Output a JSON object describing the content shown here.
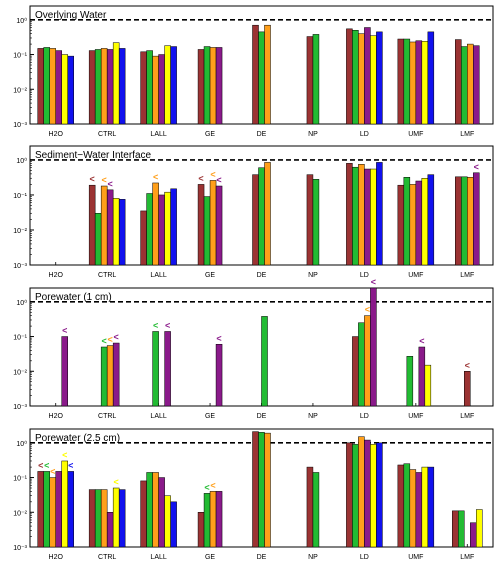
{
  "colors": {
    "series": [
      "#9b3333",
      "#22bb33",
      "#ff9f1a",
      "#8a1a8a",
      "#ffff00",
      "#1111ee"
    ],
    "frame": "#000000",
    "reference_line": "#000000"
  },
  "chart_data": [
    {
      "type": "bar",
      "title": "Overlying Water",
      "y_scale": "log",
      "ylim": [
        0.001,
        2.5
      ],
      "y_ticks": [
        "10⁻³",
        "10⁻²",
        "10⁻¹",
        "10⁰"
      ],
      "reference_line": 1,
      "categories": [
        "H2O",
        "CTRL",
        "LALL",
        "GE",
        "DE",
        "NP",
        "LD",
        "UMF",
        "LMF"
      ],
      "bars": [
        [
          0.15,
          0.16,
          0.15,
          0.13,
          0.1,
          0.09
        ],
        [
          0.13,
          0.14,
          0.15,
          0.14,
          0.22,
          0.15
        ],
        [
          0.12,
          0.13,
          0.09,
          0.1,
          0.18,
          0.17
        ],
        [
          0.14,
          0.17,
          0.16,
          0.16,
          null,
          null
        ],
        [
          0.7,
          0.45,
          0.7,
          null,
          null,
          null
        ],
        [
          0.33,
          0.38,
          null,
          null,
          null,
          null
        ],
        [
          0.55,
          0.5,
          0.4,
          0.6,
          0.35,
          0.45
        ],
        [
          0.28,
          0.28,
          0.23,
          0.25,
          0.24,
          0.45
        ],
        [
          0.27,
          0.17,
          0.2,
          0.18,
          null,
          null
        ]
      ],
      "markers": []
    },
    {
      "type": "bar",
      "title": "Sediment−Water Interface",
      "y_scale": "log",
      "ylim": [
        0.001,
        2.5
      ],
      "y_ticks": [
        "10⁻³",
        "10⁻²",
        "10⁻¹",
        "10⁰"
      ],
      "reference_line": 1,
      "categories": [
        "H2O",
        "CTRL",
        "LALL",
        "GE",
        "DE",
        "NP",
        "LD",
        "UMF",
        "LMF"
      ],
      "bars": [
        [
          null,
          null,
          null,
          null,
          null,
          null
        ],
        [
          0.19,
          0.03,
          0.18,
          0.14,
          0.08,
          0.075
        ],
        [
          0.035,
          0.11,
          0.22,
          0.1,
          0.12,
          0.15
        ],
        [
          0.2,
          0.09,
          0.26,
          0.18,
          null,
          null
        ],
        [
          0.38,
          0.6,
          0.85,
          null,
          null,
          null
        ],
        [
          0.38,
          0.28,
          null,
          null,
          null,
          null
        ],
        [
          0.8,
          0.62,
          0.75,
          0.55,
          0.55,
          0.85
        ],
        [
          0.19,
          0.32,
          0.2,
          0.25,
          0.3,
          0.38
        ],
        [
          0.33,
          0.33,
          0.32,
          0.43,
          null,
          null
        ]
      ],
      "markers": [
        {
          "category": 1,
          "bar": 0,
          "text": "<"
        },
        {
          "category": 1,
          "bar": 2,
          "text": "<"
        },
        {
          "category": 1,
          "bar": 3,
          "text": "<"
        },
        {
          "category": 2,
          "bar": 2,
          "text": "<"
        },
        {
          "category": 3,
          "bar": 0,
          "text": "<"
        },
        {
          "category": 3,
          "bar": 2,
          "text": "<"
        },
        {
          "category": 3,
          "bar": 3,
          "text": "<"
        },
        {
          "category": 8,
          "bar": 3,
          "text": "<"
        }
      ]
    },
    {
      "type": "bar",
      "title": "Porewater (1 cm)",
      "y_scale": "log",
      "ylim": [
        0.001,
        2.5
      ],
      "y_ticks": [
        "10⁻³",
        "10⁻²",
        "10⁻¹",
        "10⁰"
      ],
      "reference_line": 1,
      "categories": [
        "H2O",
        "CTRL",
        "LALL",
        "GE",
        "DE",
        "NP",
        "LD",
        "UMF",
        "LMF"
      ],
      "bars": [
        [
          null,
          null,
          null,
          0.1,
          null,
          null
        ],
        [
          null,
          0.05,
          0.055,
          0.065,
          null,
          null
        ],
        [
          null,
          0.14,
          null,
          0.14,
          null,
          null
        ],
        [
          null,
          null,
          null,
          0.06,
          null,
          null
        ],
        [
          null,
          0.38,
          null,
          null,
          null,
          null
        ],
        [
          null,
          null,
          null,
          null,
          null,
          null
        ],
        [
          0.1,
          0.25,
          0.4,
          2.5,
          null,
          null
        ],
        [
          null,
          0.027,
          null,
          0.05,
          0.015,
          null
        ],
        [
          0.01,
          null,
          null,
          null,
          null,
          null
        ]
      ],
      "markers": [
        {
          "category": 0,
          "bar": 3,
          "text": "<"
        },
        {
          "category": 1,
          "bar": 1,
          "text": "<"
        },
        {
          "category": 1,
          "bar": 2,
          "text": "<"
        },
        {
          "category": 1,
          "bar": 3,
          "text": "<"
        },
        {
          "category": 2,
          "bar": 1,
          "text": "<"
        },
        {
          "category": 2,
          "bar": 3,
          "text": "<"
        },
        {
          "category": 3,
          "bar": 3,
          "text": "<"
        },
        {
          "category": 6,
          "bar": 2,
          "text": "<"
        },
        {
          "category": 6,
          "bar": 3,
          "text": "<"
        },
        {
          "category": 7,
          "bar": 3,
          "text": "<"
        },
        {
          "category": 8,
          "bar": 0,
          "text": "<"
        }
      ]
    },
    {
      "type": "bar",
      "title": "Porewater (2.5 cm)",
      "y_scale": "log",
      "ylim": [
        0.001,
        2.5
      ],
      "y_ticks": [
        "10⁻³",
        "10⁻²",
        "10⁻¹",
        "10⁰"
      ],
      "reference_line": 1,
      "categories": [
        "H2O",
        "CTRL",
        "LALL",
        "GE",
        "DE",
        "NP",
        "LD",
        "UMF",
        "LMF"
      ],
      "bars": [
        [
          0.15,
          0.15,
          0.1,
          0.15,
          0.3,
          0.15
        ],
        [
          0.045,
          0.045,
          0.045,
          0.01,
          0.05,
          0.045
        ],
        [
          0.08,
          0.14,
          0.14,
          0.1,
          0.03,
          0.02
        ],
        [
          0.01,
          0.035,
          0.04,
          0.04,
          null,
          null
        ],
        [
          2.1,
          2.0,
          1.9,
          null,
          null,
          null
        ],
        [
          0.2,
          0.14,
          null,
          null,
          null,
          null
        ],
        [
          1.0,
          0.9,
          1.5,
          1.2,
          0.9,
          1.0
        ],
        [
          0.23,
          0.25,
          0.17,
          0.14,
          0.2,
          0.2
        ],
        [
          0.011,
          0.011,
          null,
          0.005,
          0.012,
          null
        ]
      ],
      "markers": [
        {
          "category": 0,
          "bar": 0,
          "text": "<"
        },
        {
          "category": 0,
          "bar": 1,
          "text": "<"
        },
        {
          "category": 0,
          "bar": 2,
          "text": "<"
        },
        {
          "category": 0,
          "bar": 4,
          "text": "<"
        },
        {
          "category": 0,
          "bar": 5,
          "text": "<"
        },
        {
          "category": 1,
          "bar": 4,
          "text": "<"
        },
        {
          "category": 3,
          "bar": 1,
          "text": "<"
        },
        {
          "category": 3,
          "bar": 2,
          "text": "<"
        },
        {
          "category": 3,
          "bar": 4,
          "text": "<"
        }
      ]
    }
  ]
}
